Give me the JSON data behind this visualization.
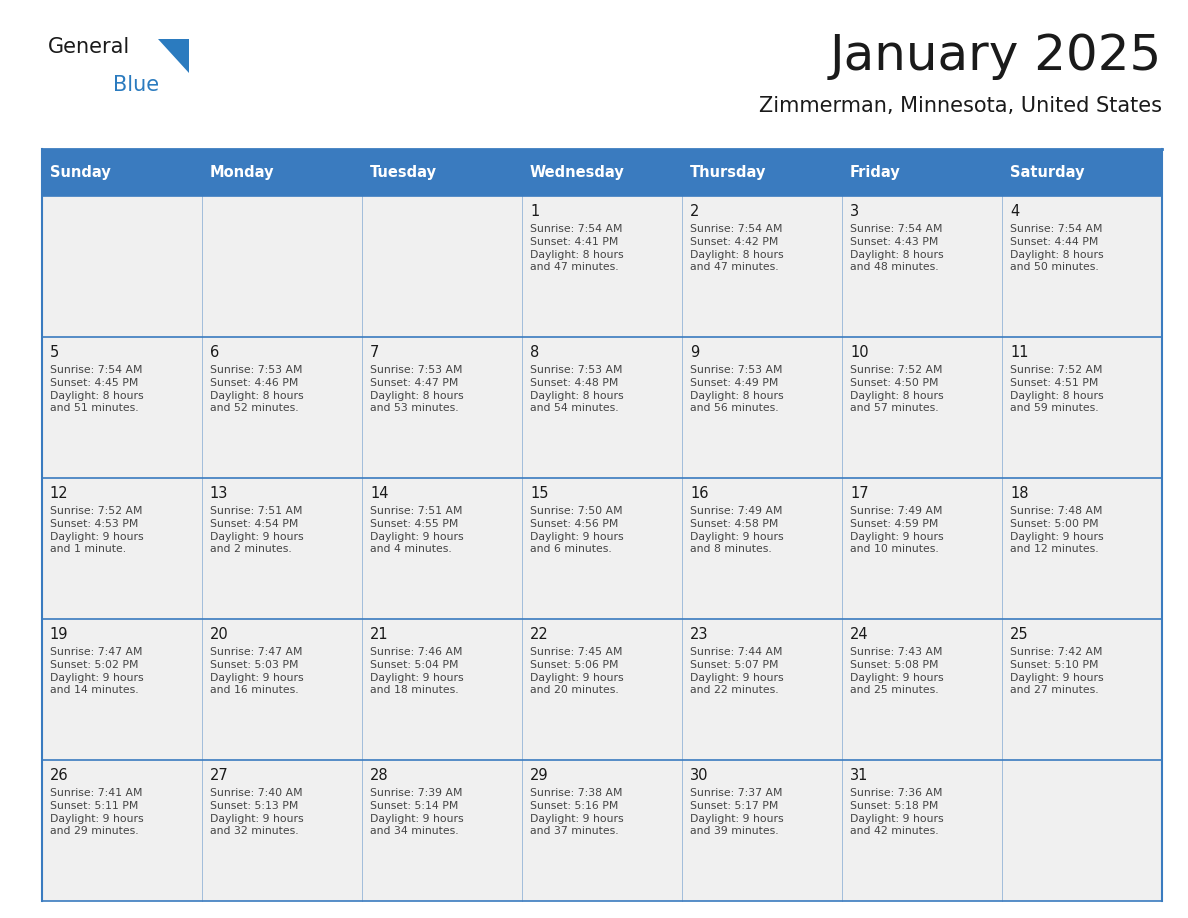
{
  "title": "January 2025",
  "subtitle": "Zimmerman, Minnesota, United States",
  "header_bg": "#3a7bbf",
  "header_text_color": "#ffffff",
  "cell_bg_light": "#f0f0f0",
  "border_color": "#3a7bbf",
  "title_color": "#1a1a1a",
  "subtitle_color": "#1a1a1a",
  "day_number_color": "#1a1a1a",
  "cell_text_color": "#444444",
  "logo_general_color": "#1a1a1a",
  "logo_blue_color": "#2b7bbf",
  "day_names": [
    "Sunday",
    "Monday",
    "Tuesday",
    "Wednesday",
    "Thursday",
    "Friday",
    "Saturday"
  ],
  "weeks": [
    [
      {
        "day": null,
        "sunrise": null,
        "sunset": null,
        "daylight": null
      },
      {
        "day": null,
        "sunrise": null,
        "sunset": null,
        "daylight": null
      },
      {
        "day": null,
        "sunrise": null,
        "sunset": null,
        "daylight": null
      },
      {
        "day": 1,
        "sunrise": "7:54 AM",
        "sunset": "4:41 PM",
        "daylight": "8 hours\nand 47 minutes."
      },
      {
        "day": 2,
        "sunrise": "7:54 AM",
        "sunset": "4:42 PM",
        "daylight": "8 hours\nand 47 minutes."
      },
      {
        "day": 3,
        "sunrise": "7:54 AM",
        "sunset": "4:43 PM",
        "daylight": "8 hours\nand 48 minutes."
      },
      {
        "day": 4,
        "sunrise": "7:54 AM",
        "sunset": "4:44 PM",
        "daylight": "8 hours\nand 50 minutes."
      }
    ],
    [
      {
        "day": 5,
        "sunrise": "7:54 AM",
        "sunset": "4:45 PM",
        "daylight": "8 hours\nand 51 minutes."
      },
      {
        "day": 6,
        "sunrise": "7:53 AM",
        "sunset": "4:46 PM",
        "daylight": "8 hours\nand 52 minutes."
      },
      {
        "day": 7,
        "sunrise": "7:53 AM",
        "sunset": "4:47 PM",
        "daylight": "8 hours\nand 53 minutes."
      },
      {
        "day": 8,
        "sunrise": "7:53 AM",
        "sunset": "4:48 PM",
        "daylight": "8 hours\nand 54 minutes."
      },
      {
        "day": 9,
        "sunrise": "7:53 AM",
        "sunset": "4:49 PM",
        "daylight": "8 hours\nand 56 minutes."
      },
      {
        "day": 10,
        "sunrise": "7:52 AM",
        "sunset": "4:50 PM",
        "daylight": "8 hours\nand 57 minutes."
      },
      {
        "day": 11,
        "sunrise": "7:52 AM",
        "sunset": "4:51 PM",
        "daylight": "8 hours\nand 59 minutes."
      }
    ],
    [
      {
        "day": 12,
        "sunrise": "7:52 AM",
        "sunset": "4:53 PM",
        "daylight": "9 hours\nand 1 minute."
      },
      {
        "day": 13,
        "sunrise": "7:51 AM",
        "sunset": "4:54 PM",
        "daylight": "9 hours\nand 2 minutes."
      },
      {
        "day": 14,
        "sunrise": "7:51 AM",
        "sunset": "4:55 PM",
        "daylight": "9 hours\nand 4 minutes."
      },
      {
        "day": 15,
        "sunrise": "7:50 AM",
        "sunset": "4:56 PM",
        "daylight": "9 hours\nand 6 minutes."
      },
      {
        "day": 16,
        "sunrise": "7:49 AM",
        "sunset": "4:58 PM",
        "daylight": "9 hours\nand 8 minutes."
      },
      {
        "day": 17,
        "sunrise": "7:49 AM",
        "sunset": "4:59 PM",
        "daylight": "9 hours\nand 10 minutes."
      },
      {
        "day": 18,
        "sunrise": "7:48 AM",
        "sunset": "5:00 PM",
        "daylight": "9 hours\nand 12 minutes."
      }
    ],
    [
      {
        "day": 19,
        "sunrise": "7:47 AM",
        "sunset": "5:02 PM",
        "daylight": "9 hours\nand 14 minutes."
      },
      {
        "day": 20,
        "sunrise": "7:47 AM",
        "sunset": "5:03 PM",
        "daylight": "9 hours\nand 16 minutes."
      },
      {
        "day": 21,
        "sunrise": "7:46 AM",
        "sunset": "5:04 PM",
        "daylight": "9 hours\nand 18 minutes."
      },
      {
        "day": 22,
        "sunrise": "7:45 AM",
        "sunset": "5:06 PM",
        "daylight": "9 hours\nand 20 minutes."
      },
      {
        "day": 23,
        "sunrise": "7:44 AM",
        "sunset": "5:07 PM",
        "daylight": "9 hours\nand 22 minutes."
      },
      {
        "day": 24,
        "sunrise": "7:43 AM",
        "sunset": "5:08 PM",
        "daylight": "9 hours\nand 25 minutes."
      },
      {
        "day": 25,
        "sunrise": "7:42 AM",
        "sunset": "5:10 PM",
        "daylight": "9 hours\nand 27 minutes."
      }
    ],
    [
      {
        "day": 26,
        "sunrise": "7:41 AM",
        "sunset": "5:11 PM",
        "daylight": "9 hours\nand 29 minutes."
      },
      {
        "day": 27,
        "sunrise": "7:40 AM",
        "sunset": "5:13 PM",
        "daylight": "9 hours\nand 32 minutes."
      },
      {
        "day": 28,
        "sunrise": "7:39 AM",
        "sunset": "5:14 PM",
        "daylight": "9 hours\nand 34 minutes."
      },
      {
        "day": 29,
        "sunrise": "7:38 AM",
        "sunset": "5:16 PM",
        "daylight": "9 hours\nand 37 minutes."
      },
      {
        "day": 30,
        "sunrise": "7:37 AM",
        "sunset": "5:17 PM",
        "daylight": "9 hours\nand 39 minutes."
      },
      {
        "day": 31,
        "sunrise": "7:36 AM",
        "sunset": "5:18 PM",
        "daylight": "9 hours\nand 42 minutes."
      },
      {
        "day": null,
        "sunrise": null,
        "sunset": null,
        "daylight": null
      }
    ]
  ]
}
